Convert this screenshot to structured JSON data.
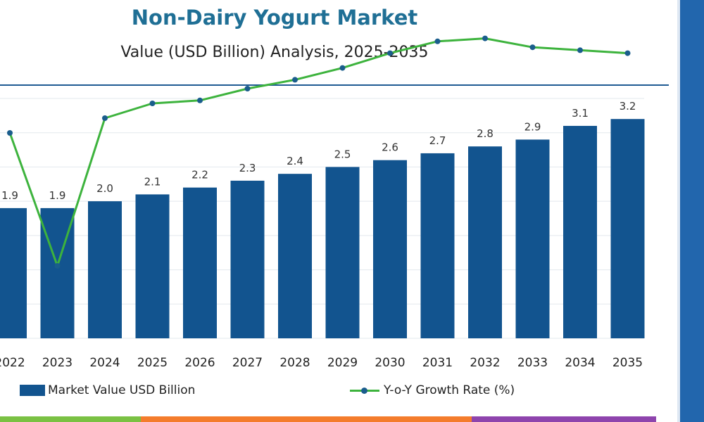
{
  "chart_data": {
    "type": "bar",
    "title": "Non-Dairy Yogurt Market",
    "subtitle": "Value (USD Billion) Analysis, 2025-2035",
    "categories": [
      "2022",
      "2023",
      "2024",
      "2025",
      "2026",
      "2027",
      "2028",
      "2029",
      "2030",
      "2031",
      "2032",
      "2033",
      "2034",
      "2035"
    ],
    "series": [
      {
        "name": "Market Value USD Billion",
        "type": "bar",
        "values": [
          1.9,
          1.9,
          2.0,
          2.1,
          2.2,
          2.3,
          2.4,
          2.5,
          2.6,
          2.7,
          2.8,
          2.9,
          3.1,
          3.2
        ],
        "labels": [
          "1.9",
          "1.9",
          "2.0",
          "2.1",
          "2.2",
          "2.3",
          "2.4",
          "2.5",
          "2.6",
          "2.7",
          "2.8",
          "2.9",
          "3.1",
          "3.2"
        ],
        "color": "#12548f"
      },
      {
        "name": "Y-o-Y Growth Rate (%)",
        "type": "line",
        "values": [
          4.5,
          0.0,
          5.0,
          5.5,
          5.6,
          6.0,
          6.3,
          6.7,
          7.2,
          7.6,
          7.7,
          7.4,
          7.3,
          7.2
        ],
        "color": "#3db33d",
        "marker_color": "#1a5d8c"
      }
    ],
    "value_axis": [
      0,
      3.5
    ],
    "growth_axis": [
      0,
      10
    ],
    "grid": true,
    "legend_position": "bottom"
  },
  "legend": {
    "bar_label": "Market Value USD Billion",
    "line_label": "Y-o-Y Growth Rate (%)"
  },
  "colors": {
    "bar": "#12548f",
    "line": "#3db33d",
    "marker": "#1a5d8c",
    "title": "#1f6f95",
    "accent_panel": "#2266ad",
    "strip": [
      "#7ac143",
      "#f47c2c",
      "#8e44ad"
    ]
  }
}
